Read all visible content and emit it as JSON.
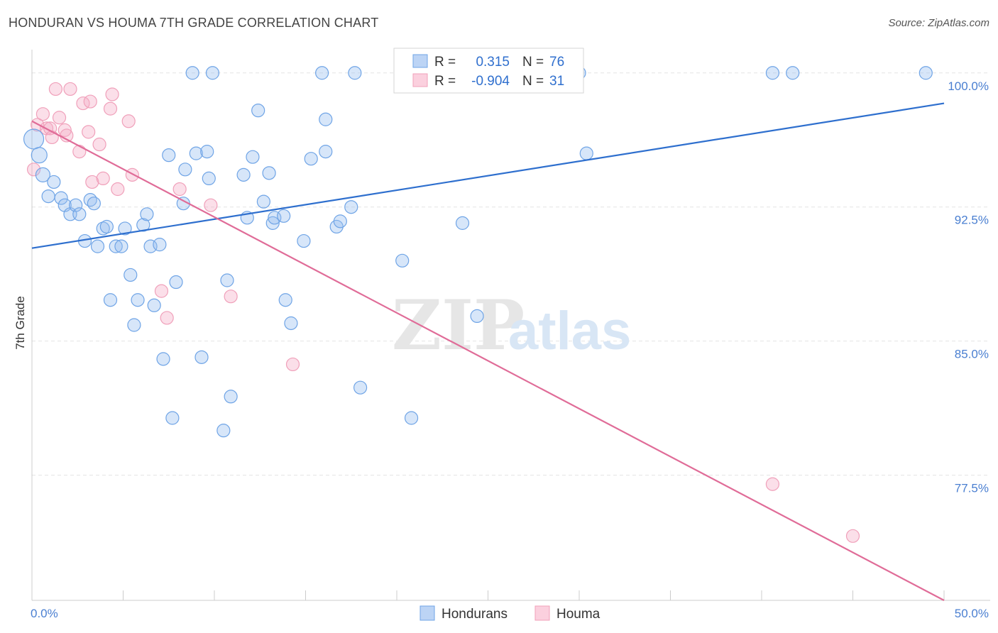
{
  "title": "HONDURAN VS HOUMA 7TH GRADE CORRELATION CHART",
  "source": "Source: ZipAtlas.com",
  "watermark": {
    "zip": "ZIP",
    "atlas": "atlas"
  },
  "colors": {
    "blue": "#6fa4e6",
    "blue_line": "#2e6fce",
    "pink": "#f0a0ba",
    "pink_line": "#e06c98",
    "grid": "#e4e4e4",
    "axis_label": "#4a7fd1"
  },
  "legend": {
    "rows": [
      {
        "r_label": "R =",
        "r_value": "0.315",
        "n_label": "N =",
        "n_value": "76",
        "color": "#6fa4e6"
      },
      {
        "r_label": "R =",
        "r_value": "-0.904",
        "n_label": "N =",
        "n_value": "31",
        "color": "#f0a0ba"
      }
    ]
  },
  "bottom_legend": [
    {
      "name": "Hondurans",
      "color": "#6fa4e6"
    },
    {
      "name": "Houma",
      "color": "#f0a0ba"
    }
  ],
  "chart_data": {
    "type": "scatter",
    "title": "HONDURAN VS HOUMA 7TH GRADE CORRELATION CHART",
    "xlabel": "",
    "ylabel": "7th Grade",
    "xlim": [
      0,
      50
    ],
    "ylim": [
      70.5,
      101.3
    ],
    "x_tick_labels": [
      "0.0%",
      "50.0%"
    ],
    "y_ticks": [
      77.5,
      85.0,
      92.5,
      100.0
    ],
    "y_tick_labels": [
      "77.5%",
      "85.0%",
      "92.5%",
      "100.0%"
    ],
    "grid": true,
    "legend_placement": "top-center",
    "series": [
      {
        "name": "Hondurans",
        "color": "#6fa4e6",
        "r": 0.315,
        "n": 76,
        "trend": {
          "x": [
            0,
            50
          ],
          "y": [
            90.2,
            98.3
          ]
        },
        "points": [
          [
            0.1,
            96.3,
            14
          ],
          [
            0.4,
            95.4,
            11
          ],
          [
            0.6,
            94.3,
            10
          ],
          [
            0.9,
            93.1,
            9
          ],
          [
            1.2,
            93.9,
            9
          ],
          [
            1.6,
            93.0,
            9
          ],
          [
            1.8,
            92.6,
            9
          ],
          [
            2.1,
            92.1,
            9
          ],
          [
            2.4,
            92.6,
            9
          ],
          [
            2.6,
            92.1,
            9
          ],
          [
            2.9,
            90.6,
            9
          ],
          [
            3.2,
            92.9,
            9
          ],
          [
            3.4,
            92.7,
            9
          ],
          [
            3.6,
            90.3,
            9
          ],
          [
            3.9,
            91.3,
            9
          ],
          [
            4.1,
            91.4,
            9
          ],
          [
            4.3,
            87.3,
            9
          ],
          [
            4.6,
            90.3,
            9
          ],
          [
            4.9,
            90.3,
            9
          ],
          [
            5.1,
            91.3,
            9
          ],
          [
            5.4,
            88.7,
            9
          ],
          [
            5.6,
            85.9,
            9
          ],
          [
            5.8,
            87.3,
            9
          ],
          [
            6.1,
            91.5,
            9
          ],
          [
            6.3,
            92.1,
            9
          ],
          [
            6.5,
            90.3,
            9
          ],
          [
            6.7,
            87.0,
            9
          ],
          [
            7.0,
            90.4,
            9
          ],
          [
            7.2,
            84.0,
            9
          ],
          [
            7.5,
            95.4,
            9
          ],
          [
            7.7,
            80.7,
            9
          ],
          [
            7.9,
            88.3,
            9
          ],
          [
            8.3,
            92.7,
            9
          ],
          [
            8.4,
            94.6,
            9
          ],
          [
            8.8,
            100.0,
            9
          ],
          [
            9.0,
            95.5,
            9
          ],
          [
            9.3,
            84.1,
            9
          ],
          [
            9.6,
            95.6,
            9
          ],
          [
            9.7,
            94.1,
            9
          ],
          [
            9.9,
            100.0,
            9
          ],
          [
            10.5,
            80.0,
            9
          ],
          [
            10.7,
            88.4,
            9
          ],
          [
            10.9,
            81.9,
            9
          ],
          [
            11.6,
            94.3,
            9
          ],
          [
            11.8,
            91.9,
            9
          ],
          [
            12.1,
            95.3,
            9
          ],
          [
            12.4,
            97.9,
            9
          ],
          [
            12.7,
            92.8,
            9
          ],
          [
            13.0,
            94.4,
            9
          ],
          [
            13.2,
            91.6,
            9
          ],
          [
            13.3,
            91.9,
            9
          ],
          [
            13.8,
            92.0,
            9
          ],
          [
            13.9,
            87.3,
            9
          ],
          [
            14.2,
            86.0,
            9
          ],
          [
            14.9,
            90.6,
            9
          ],
          [
            15.3,
            95.2,
            9
          ],
          [
            15.9,
            100.0,
            9
          ],
          [
            16.1,
            95.6,
            9
          ],
          [
            16.1,
            97.4,
            9
          ],
          [
            16.7,
            91.4,
            9
          ],
          [
            16.9,
            91.7,
            9
          ],
          [
            17.5,
            92.5,
            9
          ],
          [
            17.7,
            100.0,
            9
          ],
          [
            18.0,
            82.4,
            9
          ],
          [
            20.3,
            89.5,
            9
          ],
          [
            20.8,
            80.7,
            9
          ],
          [
            23.6,
            91.6,
            9
          ],
          [
            24.4,
            86.4,
            9
          ],
          [
            25.2,
            100.0,
            9
          ],
          [
            26.5,
            100.0,
            9
          ],
          [
            28.0,
            100.0,
            9
          ],
          [
            30.0,
            100.0,
            9
          ],
          [
            30.4,
            95.5,
            9
          ],
          [
            40.6,
            100.0,
            9
          ],
          [
            41.7,
            100.0,
            9
          ],
          [
            49.0,
            100.0,
            9
          ]
        ]
      },
      {
        "name": "Houma",
        "color": "#f0a0ba",
        "r": -0.904,
        "n": 31,
        "trend": {
          "x": [
            0,
            50
          ],
          "y": [
            97.3,
            70.5
          ]
        },
        "points": [
          [
            0.1,
            94.6,
            9
          ],
          [
            0.3,
            97.1,
            9
          ],
          [
            0.6,
            97.7,
            9
          ],
          [
            0.8,
            96.9,
            9
          ],
          [
            1.0,
            96.9,
            9
          ],
          [
            1.1,
            96.4,
            9
          ],
          [
            1.3,
            99.1,
            9
          ],
          [
            1.5,
            97.5,
            9
          ],
          [
            1.8,
            96.8,
            9
          ],
          [
            1.9,
            96.5,
            9
          ],
          [
            2.1,
            99.1,
            9
          ],
          [
            2.6,
            95.6,
            9
          ],
          [
            2.8,
            98.3,
            9
          ],
          [
            3.1,
            96.7,
            9
          ],
          [
            3.2,
            98.4,
            9
          ],
          [
            3.3,
            93.9,
            9
          ],
          [
            3.7,
            96.0,
            9
          ],
          [
            3.9,
            94.1,
            9
          ],
          [
            4.3,
            98.0,
            9
          ],
          [
            4.4,
            98.8,
            9
          ],
          [
            4.7,
            93.5,
            9
          ],
          [
            5.3,
            97.3,
            9
          ],
          [
            5.5,
            94.3,
            9
          ],
          [
            7.1,
            87.8,
            9
          ],
          [
            7.4,
            86.3,
            9
          ],
          [
            8.1,
            93.5,
            9
          ],
          [
            9.8,
            92.6,
            9
          ],
          [
            10.9,
            87.5,
            9
          ],
          [
            14.3,
            83.7,
            9
          ],
          [
            40.6,
            77.0,
            9
          ],
          [
            45.0,
            74.1,
            9
          ]
        ]
      }
    ]
  }
}
